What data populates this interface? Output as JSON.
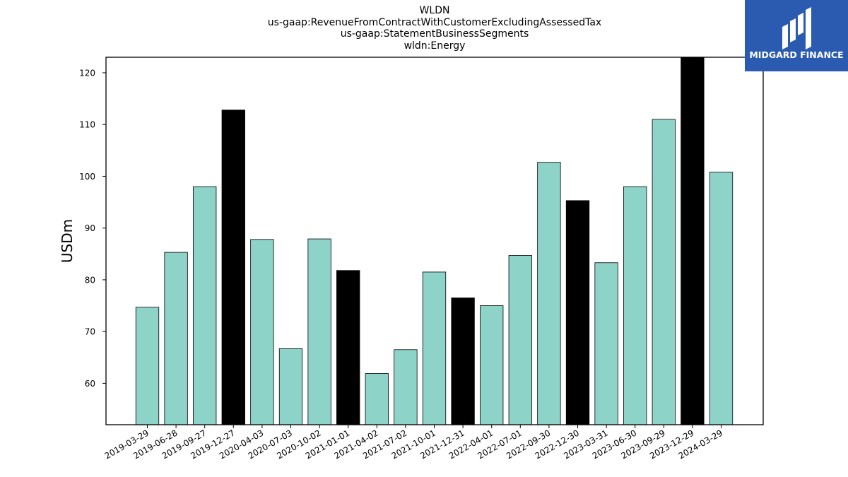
{
  "chart_data": {
    "type": "bar",
    "title_lines": [
      "WLDN",
      "us-gaap:RevenueFromContractWithCustomerExcludingAssessedTax",
      "us-gaap:StatementBusinessSegments",
      "wldn:Energy"
    ],
    "ylabel": "USDm",
    "xlabel": "",
    "ylim": [
      52,
      123
    ],
    "yticks": [
      60,
      70,
      80,
      90,
      100,
      110,
      120
    ],
    "categories": [
      "2019-03-29",
      "2019-06-28",
      "2019-09-27",
      "2019-12-27",
      "2020-04-03",
      "2020-07-03",
      "2020-10-02",
      "2021-01-01",
      "2021-04-02",
      "2021-07-02",
      "2021-10-01",
      "2021-12-31",
      "2022-04-01",
      "2022-07-01",
      "2022-09-30",
      "2022-12-30",
      "2023-03-31",
      "2023-06-30",
      "2023-09-29",
      "2023-12-29",
      "2024-03-29"
    ],
    "values": [
      74.7,
      85.3,
      98.0,
      112.8,
      87.8,
      66.7,
      87.9,
      81.8,
      61.9,
      66.5,
      81.5,
      76.5,
      75.0,
      84.7,
      102.7,
      95.3,
      83.3,
      98.0,
      111.0,
      123.0,
      100.8
    ],
    "highlight": [
      false,
      false,
      false,
      true,
      false,
      false,
      false,
      true,
      false,
      false,
      false,
      true,
      false,
      false,
      false,
      true,
      false,
      false,
      false,
      true,
      false
    ],
    "colors": {
      "bar": "#8dd3c7",
      "highlight": "#000000",
      "edge": "#000000"
    },
    "grid": false
  },
  "logo": {
    "text": "MIDGARD FINANCE",
    "color": "#2b5bb0"
  }
}
